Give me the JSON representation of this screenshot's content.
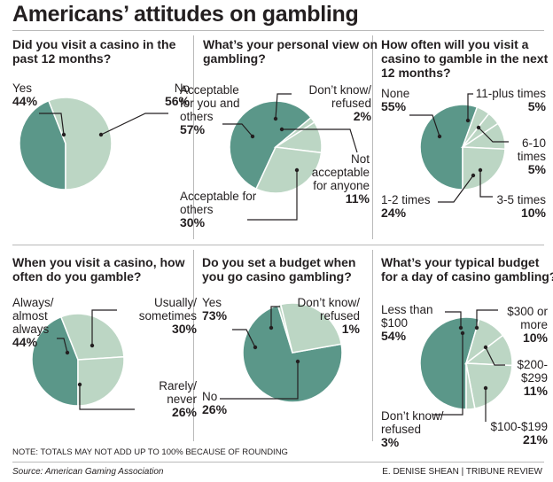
{
  "page_title": "Americans’ attitudes on gambling",
  "note": "NOTE: TOTALS MAY NOT ADD UP TO 100% BECAUSE OF ROUNDING",
  "source": "Source: American Gaming Association",
  "credit": "E. DENISE SHEAN  |  TRIBUNE REVIEW",
  "colors": {
    "dark": "#5b9789",
    "light": "#bcd6c4",
    "stroke": "#ffffff",
    "text": "#231f20",
    "rule": "#b9b9b9"
  },
  "chart_data": [
    {
      "type": "pie",
      "title": "Did you visit a casino in the past 12 months?",
      "slices": [
        {
          "name": "Yes",
          "value": 44,
          "label": "44%",
          "shade": "dark"
        },
        {
          "name": "No",
          "value": 56,
          "label": "56%",
          "shade": "light"
        }
      ]
    },
    {
      "type": "pie",
      "title": "What’s your personal view on gambling?",
      "slices": [
        {
          "name": "Acceptable for you and others",
          "value": 57,
          "label": "57%",
          "shade": "dark"
        },
        {
          "name": "Don’t know/ refused",
          "value": 2,
          "label": "2%",
          "shade": "light"
        },
        {
          "name": "Not acceptable for anyone",
          "value": 11,
          "label": "11%",
          "shade": "light"
        },
        {
          "name": "Acceptable for others",
          "value": 30,
          "label": "30%",
          "shade": "light"
        }
      ]
    },
    {
      "type": "pie",
      "title": "How often will you visit a casino to gamble in the next 12 months?",
      "slices": [
        {
          "name": "None",
          "value": 55,
          "label": "55%",
          "shade": "dark"
        },
        {
          "name": "11-plus times",
          "value": 5,
          "label": "5%",
          "shade": "light"
        },
        {
          "name": "6-10 times",
          "value": 5,
          "label": "5%",
          "shade": "light"
        },
        {
          "name": "3-5 times",
          "value": 10,
          "label": "10%",
          "shade": "light"
        },
        {
          "name": "1-2 times",
          "value": 24,
          "label": "24%",
          "shade": "light"
        }
      ]
    },
    {
      "type": "pie",
      "title": "When you visit a casino, how often do you gamble?",
      "slices": [
        {
          "name": "Always/ almost always",
          "value": 44,
          "label": "44%",
          "shade": "dark"
        },
        {
          "name": "Usually/ sometimes",
          "value": 30,
          "label": "30%",
          "shade": "light"
        },
        {
          "name": "Rarely/ never",
          "value": 26,
          "label": "26%",
          "shade": "light"
        }
      ]
    },
    {
      "type": "pie",
      "title": "Do you set a budget when you go casino gambling?",
      "slices": [
        {
          "name": "Yes",
          "value": 73,
          "label": "73%",
          "shade": "dark"
        },
        {
          "name": "Don’t know/ refused",
          "value": 1,
          "label": "1%",
          "shade": "light"
        },
        {
          "name": "No",
          "value": 26,
          "label": "26%",
          "shade": "light"
        }
      ]
    },
    {
      "type": "pie",
      "title": "What’s your typical budget for a day of casino gambling?",
      "slices": [
        {
          "name": "Less than $100",
          "value": 54,
          "label": "54%",
          "shade": "dark"
        },
        {
          "name": "$300 or more",
          "value": 10,
          "label": "10%",
          "shade": "light"
        },
        {
          "name": "$200- $299",
          "value": 11,
          "label": "11%",
          "shade": "light"
        },
        {
          "name": "$100-$199",
          "value": 21,
          "label": "21%",
          "shade": "light"
        },
        {
          "name": "Don’t know/ refused",
          "value": 3,
          "label": "3%",
          "shade": "light"
        }
      ]
    }
  ]
}
